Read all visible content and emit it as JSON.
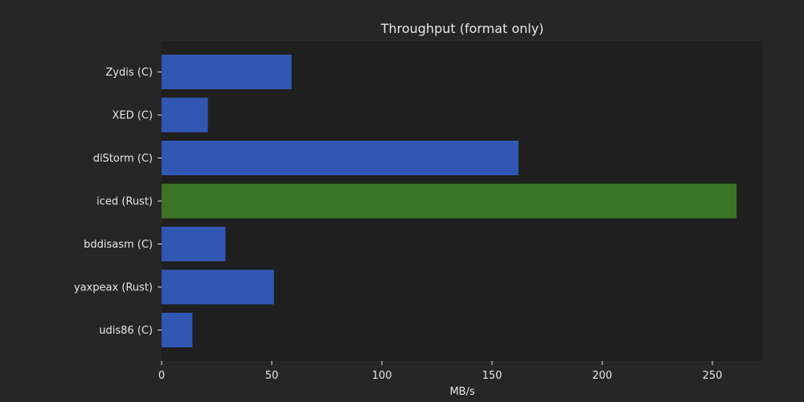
{
  "chart_data": {
    "type": "bar",
    "orientation": "horizontal",
    "title": "Throughput (format only)",
    "xlabel": "MB/s",
    "ylabel": "",
    "categories": [
      "Zydis (C)",
      "XED (C)",
      "diStorm (C)",
      "iced (Rust)",
      "bddisasm (C)",
      "yaxpeax (Rust)",
      "udis86 (C)"
    ],
    "values": [
      59,
      21,
      162,
      261,
      29,
      51,
      14
    ],
    "bar_colors": [
      "#3057b3",
      "#3057b3",
      "#3057b3",
      "#3b7525",
      "#3057b3",
      "#3057b3",
      "#3057b3"
    ],
    "xlim": [
      0,
      274
    ],
    "xticks": [
      0,
      50,
      100,
      150,
      200,
      250
    ],
    "grid": false,
    "legend": "none"
  },
  "colors": {
    "background": "#262626",
    "plot_background": "#1f1f1f",
    "text": "#e6e6e6",
    "default_bar": "#3057b3",
    "highlight_bar": "#3b7525"
  }
}
